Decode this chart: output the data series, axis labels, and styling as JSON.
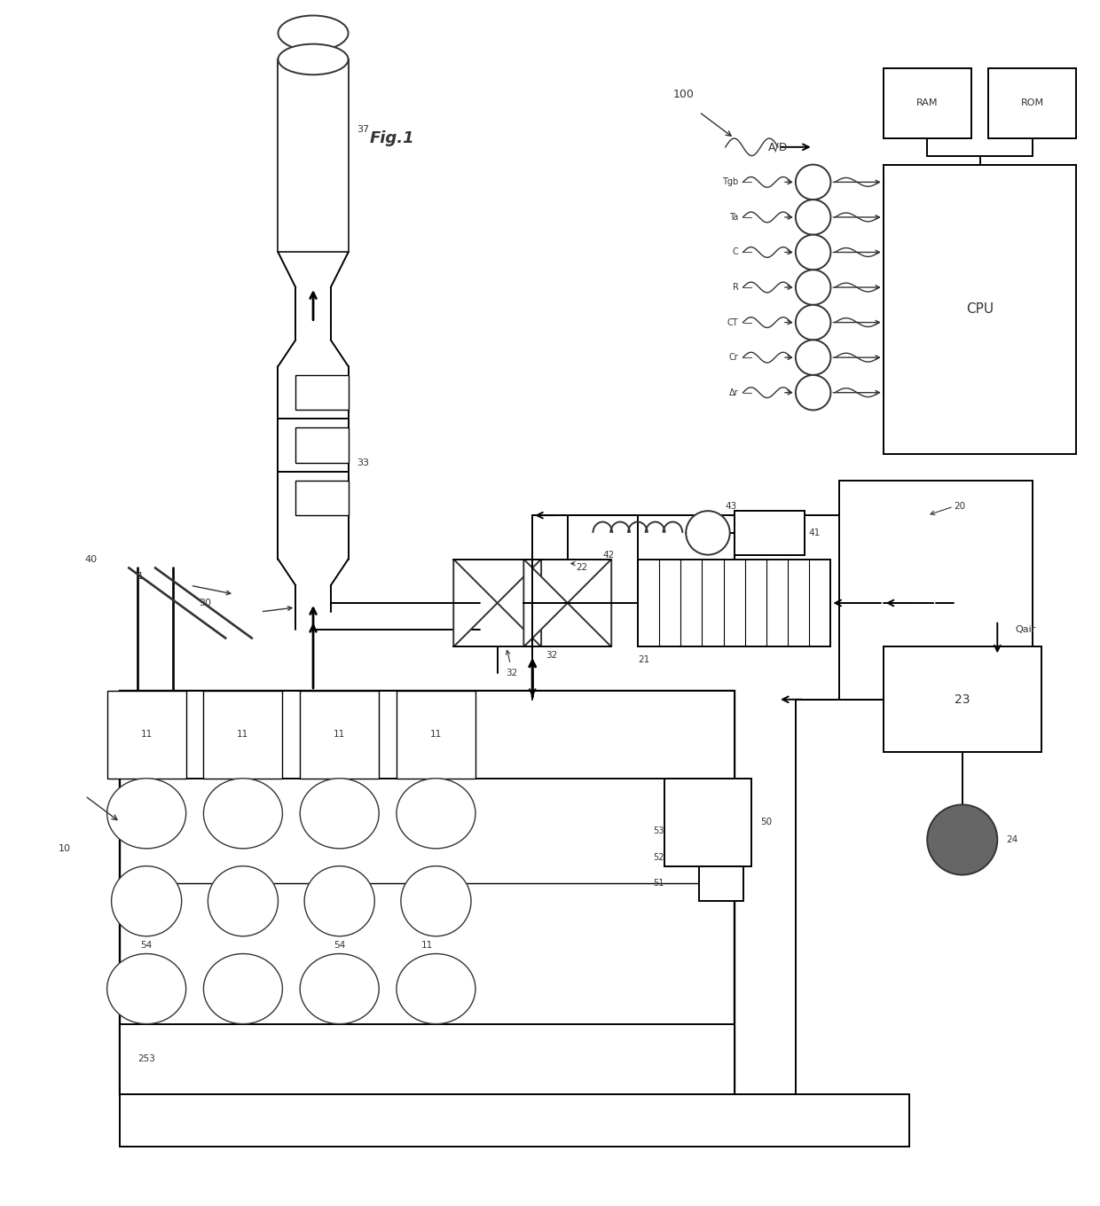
{
  "bg_color": "#ffffff",
  "line_color": "#333333",
  "fig_width": 12.4,
  "fig_height": 13.6,
  "labels": {
    "fig_label": "Fig.1",
    "l1": "1",
    "l10": "10",
    "l11": "11",
    "l20": "20",
    "l21": "21",
    "l22": "22",
    "l23": "23",
    "l24": "24",
    "l253": "253",
    "l30": "30",
    "l32": "32",
    "l33": "33",
    "l37": "37",
    "l40": "40",
    "l41": "41",
    "l42": "42",
    "l43": "43",
    "l50": "50",
    "l51": "51",
    "l52": "52",
    "l53": "53",
    "l54": "54",
    "l100": "100",
    "lAD": "A/D",
    "lCPU": "CPU",
    "lRAM": "RAM",
    "lROM": "ROM",
    "lQair": "Qair",
    "lTgb": "Tgb",
    "lTa": "Ta",
    "lC": "C",
    "lR": "R",
    "lCT": "CT",
    "lCr": "Cr",
    "lAr": "Δr"
  }
}
